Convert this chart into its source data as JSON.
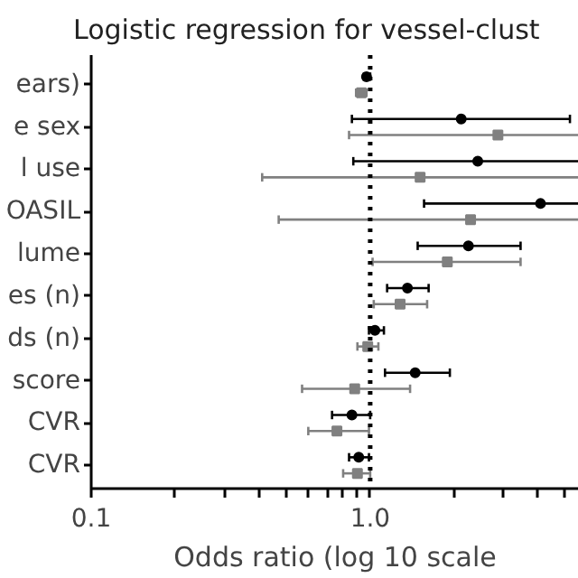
{
  "chart_data": {
    "type": "scatter",
    "orientation": "horizontal",
    "title": "Logistic regression for vessel-clust",
    "xlabel": "Odds ratio (log 10 scale",
    "categories": [
      "ears)",
      "e sex",
      "l use",
      "OASIL",
      "lume",
      "es (n)",
      "ds (n)",
      "score",
      "CVR",
      "CVR"
    ],
    "series": [
      {
        "color": "#000000",
        "marker": "circle",
        "values": [
          0.97,
          2.12,
          2.43,
          4.08,
          2.25,
          1.36,
          1.04,
          1.45,
          0.86,
          0.91
        ],
        "errors": [
          [
            0.95,
            1.0
          ],
          [
            0.86,
            5.2
          ],
          [
            0.87,
            5.6
          ],
          [
            1.56,
            5.6
          ],
          [
            1.48,
            3.46
          ],
          [
            1.15,
            1.62
          ],
          [
            0.99,
            1.12
          ],
          [
            1.13,
            1.93
          ],
          [
            0.73,
            1.0
          ],
          [
            0.84,
            0.99
          ]
        ]
      },
      {
        "color": "#808080",
        "marker": "square",
        "values": [
          0.93,
          2.87,
          1.51,
          2.29,
          1.89,
          1.28,
          0.98,
          0.88,
          0.76,
          0.9
        ],
        "errors": [
          [
            0.89,
            0.97
          ],
          [
            0.84,
            5.6
          ],
          [
            0.41,
            5.6
          ],
          [
            0.47,
            5.6
          ],
          [
            1.02,
            3.46
          ],
          [
            1.03,
            1.6
          ],
          [
            0.9,
            1.07
          ],
          [
            0.57,
            1.39
          ],
          [
            0.6,
            0.99
          ],
          [
            0.8,
            1.0
          ]
        ]
      }
    ],
    "log": "x",
    "xlim": [
      0.1,
      5.6
    ],
    "xticks": [
      {
        "value": 0.1,
        "label": "0.1"
      },
      {
        "value": 0.2,
        "label": null
      },
      {
        "value": 0.3,
        "label": null
      },
      {
        "value": 0.4,
        "label": null
      },
      {
        "value": 0.5,
        "label": null
      },
      {
        "value": 0.6,
        "label": null
      },
      {
        "value": 0.7,
        "label": null
      },
      {
        "value": 0.8,
        "label": null
      },
      {
        "value": 0.9,
        "label": null
      },
      {
        "value": 1,
        "label": "1.0"
      },
      {
        "value": 2,
        "label": null
      },
      {
        "value": 3,
        "label": null
      },
      {
        "value": 4,
        "label": null
      },
      {
        "value": 5,
        "label": null
      }
    ],
    "ref_lines": [
      {
        "axis": "x",
        "value": 1,
        "line_style": "dotted",
        "color": "#000000"
      }
    ],
    "grid": false
  }
}
